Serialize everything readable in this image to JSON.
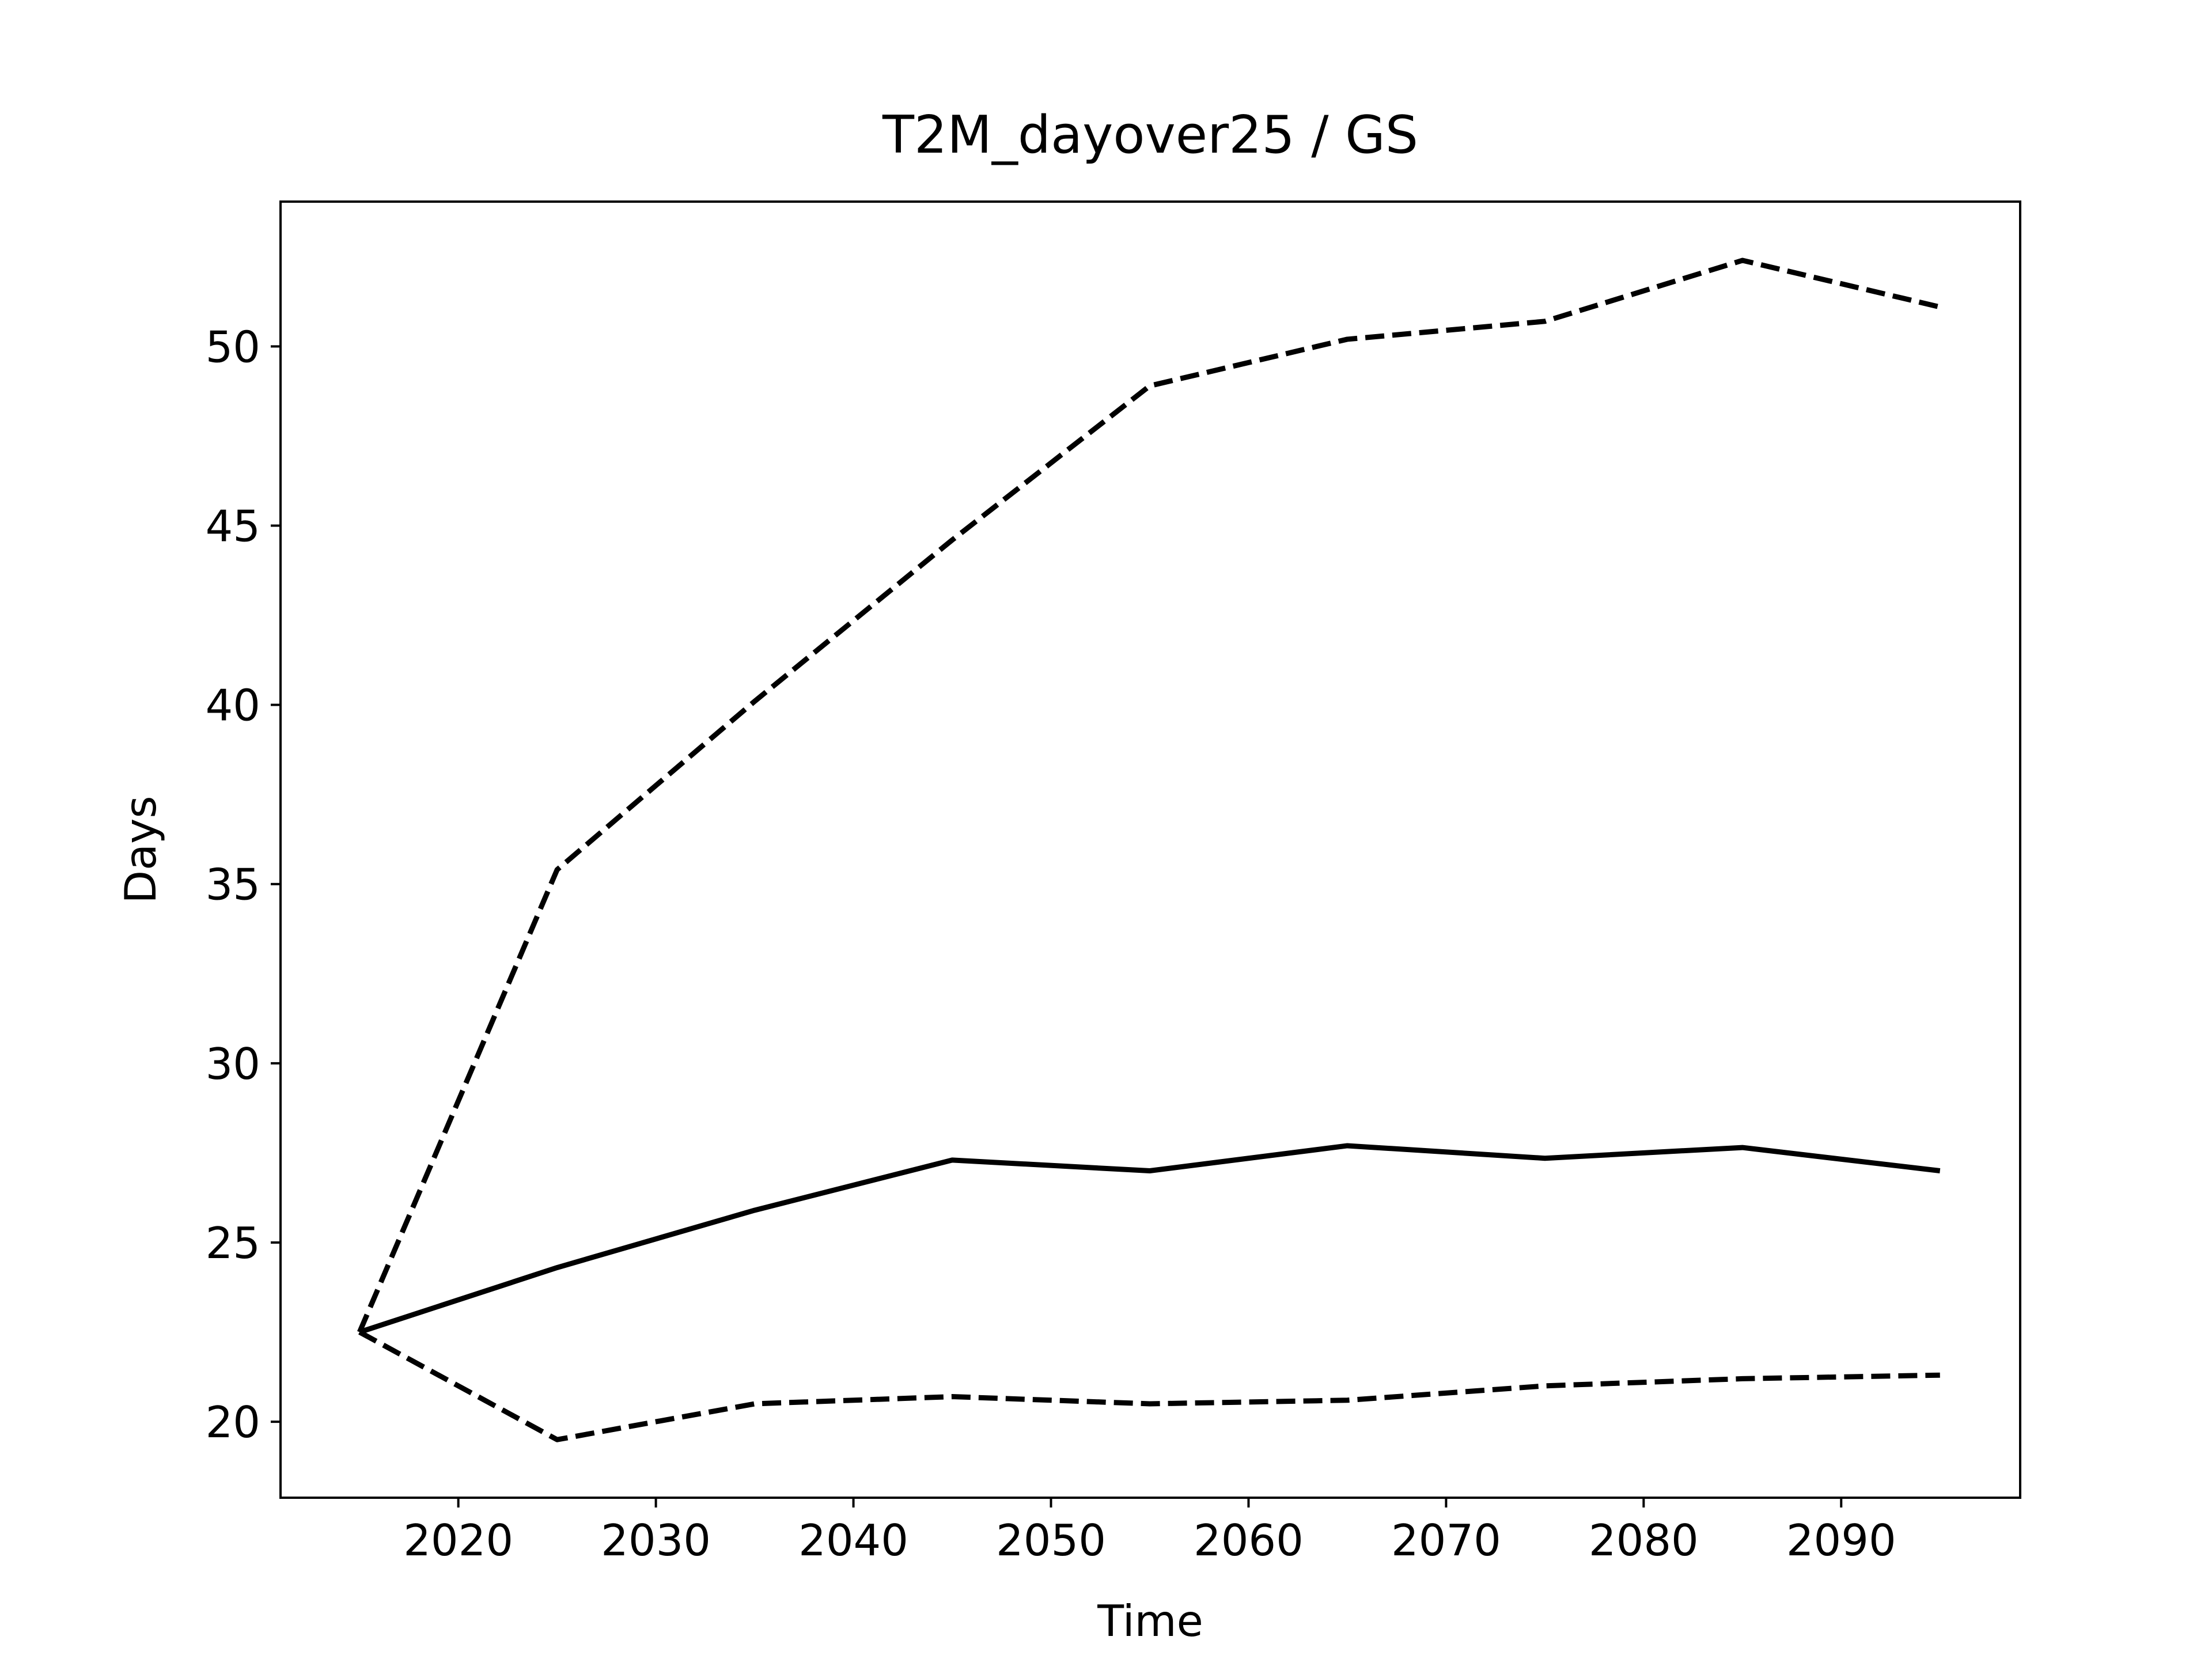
{
  "chart_data": {
    "type": "line",
    "title": "T2M_dayover25 / GS",
    "x_label": "Time",
    "y_label": "Days",
    "x": [
      2015,
      2025,
      2035,
      2045,
      2055,
      2065,
      2075,
      2085,
      2095
    ],
    "series": [
      {
        "color": "#000000",
        "linestyle": "dashed",
        "values": [
          22.5,
          35.4,
          40.1,
          44.6,
          48.9,
          50.2,
          50.7,
          52.4,
          51.1
        ]
      },
      {
        "color": "#000000",
        "linestyle": "solid",
        "values": [
          22.5,
          24.3,
          25.9,
          27.3,
          27.0,
          27.7,
          27.35,
          27.65,
          27.0
        ]
      },
      {
        "color": "#000000",
        "linestyle": "dashed",
        "values": [
          22.5,
          19.5,
          20.5,
          20.7,
          20.5,
          20.6,
          21.0,
          21.2,
          21.3
        ]
      }
    ],
    "xlim": [
      2011.0,
      2099.06
    ],
    "ylim": [
      17.88,
      54.04
    ],
    "xticks": [
      2020,
      2030,
      2040,
      2050,
      2060,
      2070,
      2080,
      2090
    ],
    "yticks": [
      20,
      25,
      30,
      35,
      40,
      45,
      50
    ],
    "grid": false
  }
}
